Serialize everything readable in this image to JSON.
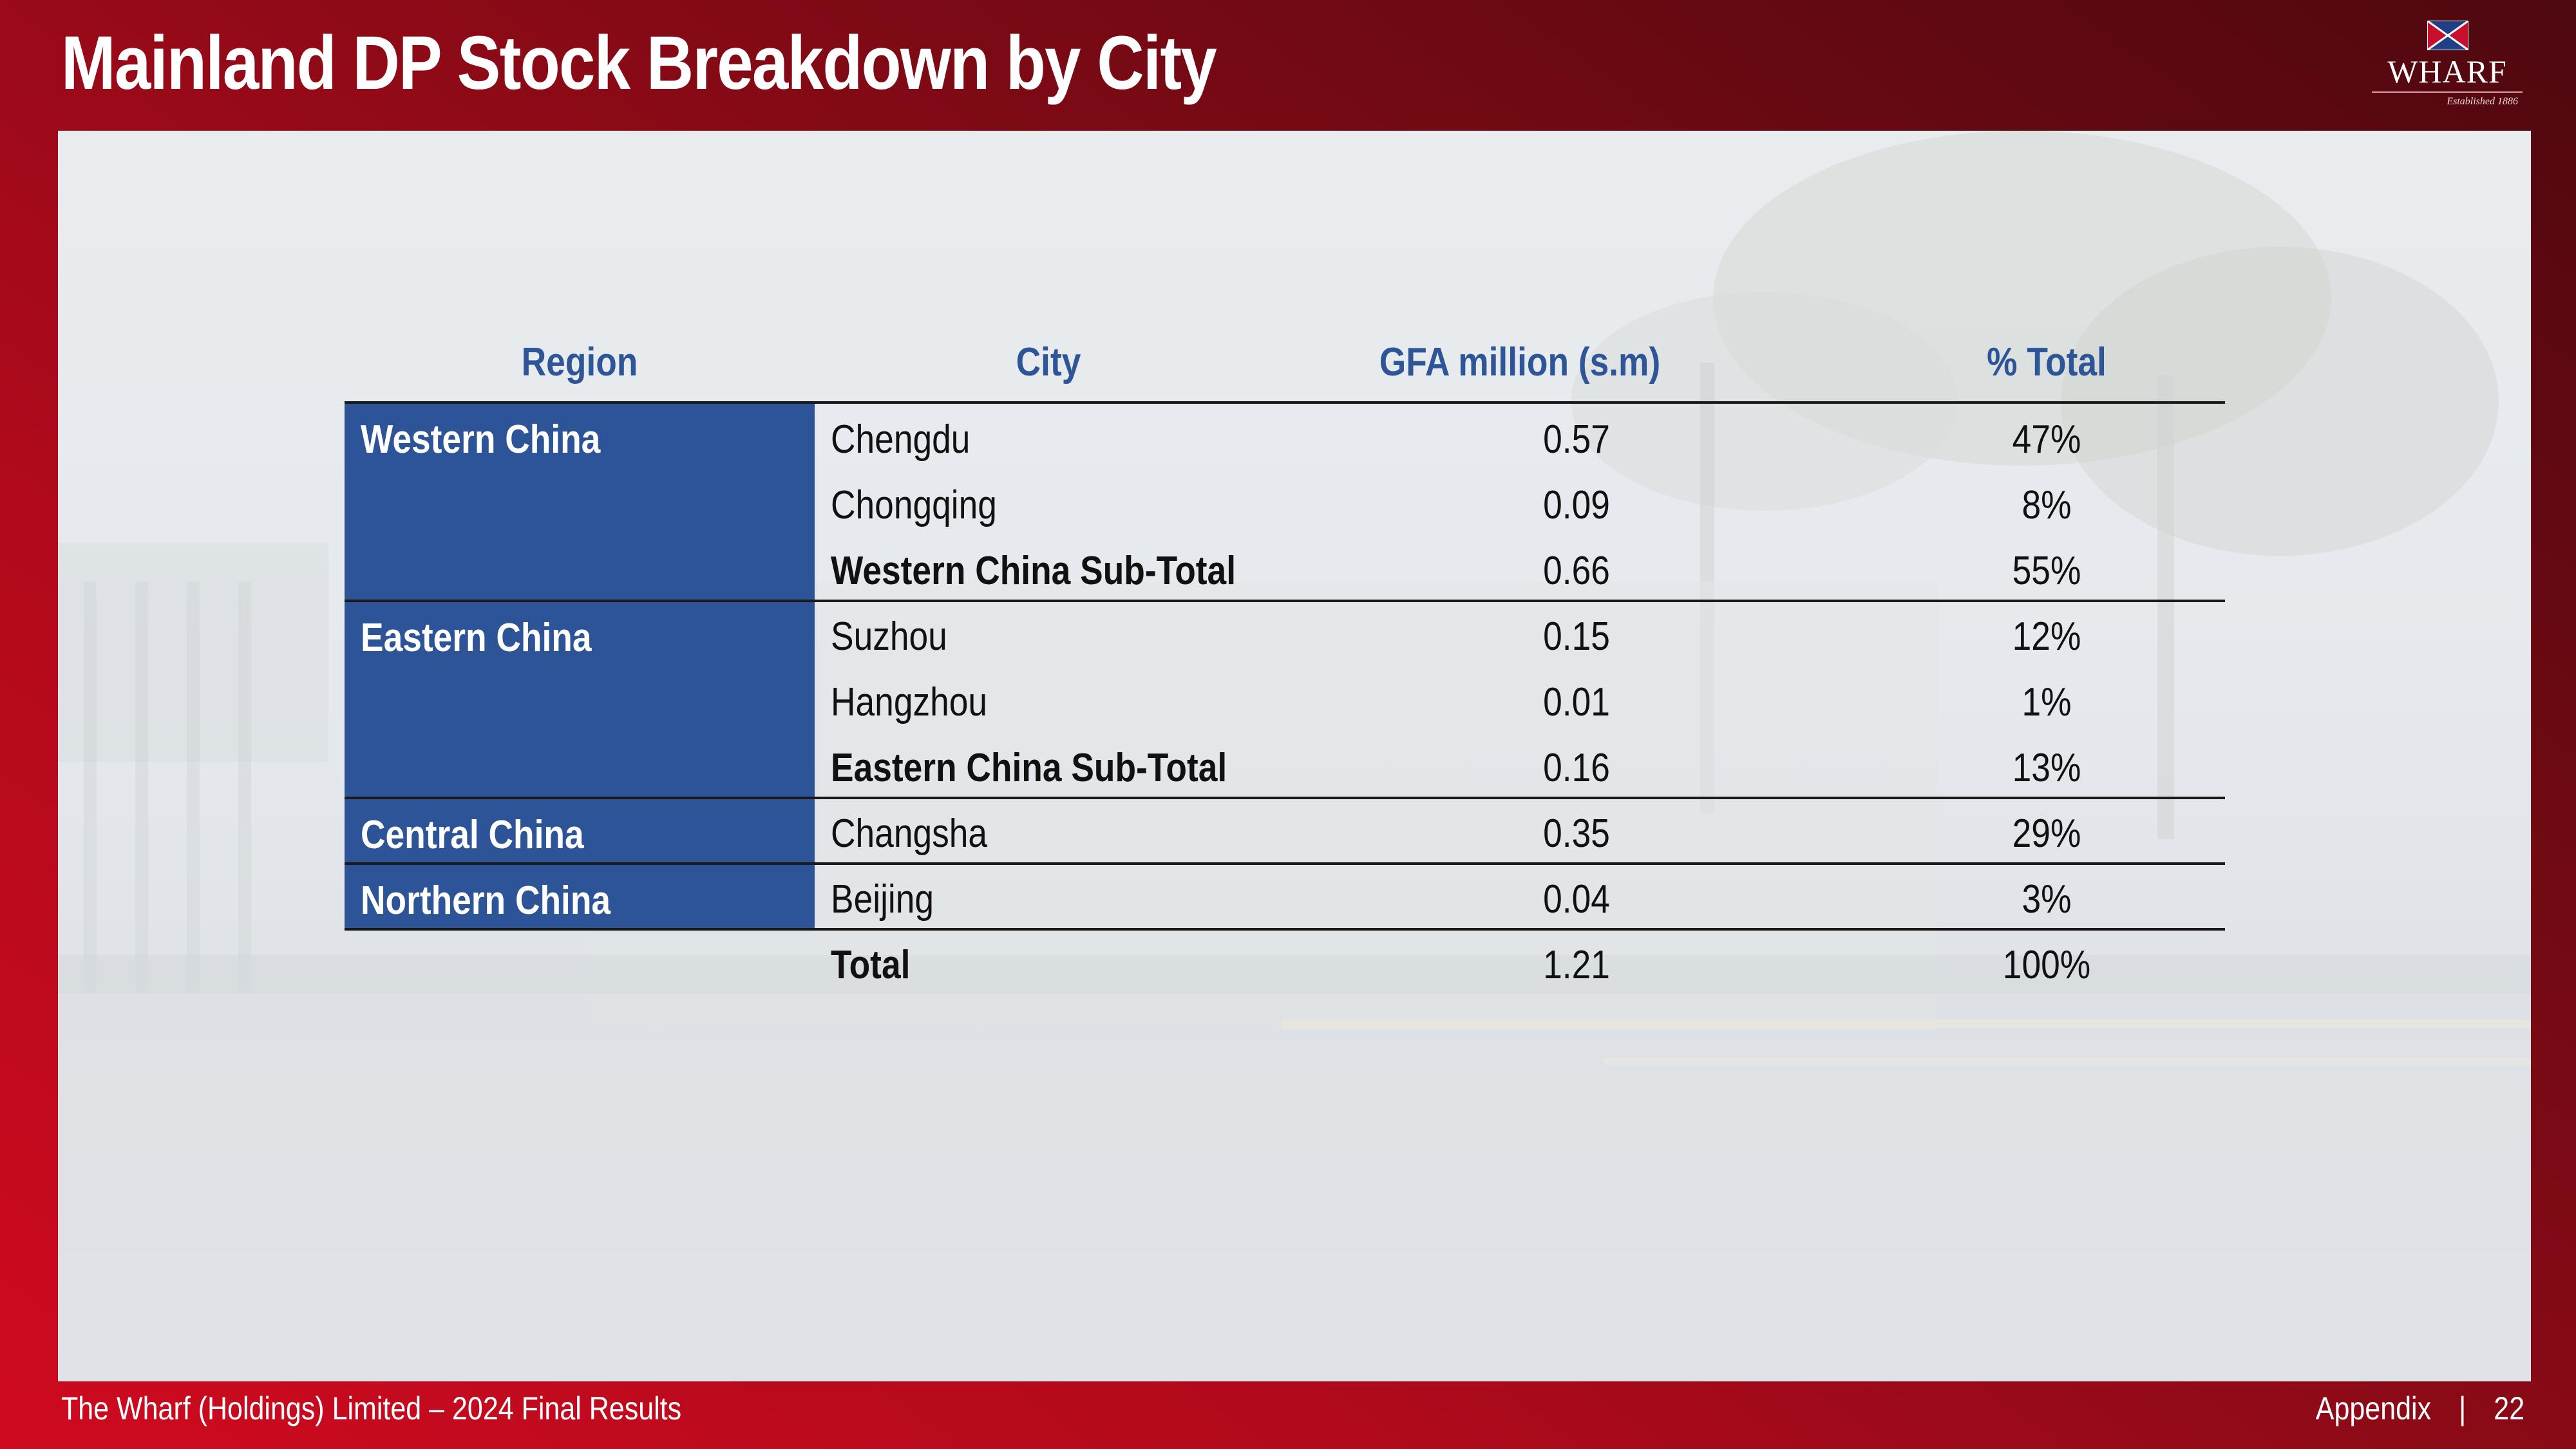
{
  "slide": {
    "title": "Mainland DP Stock Breakdown by City"
  },
  "logo": {
    "name": "WHARF",
    "tagline": "Established 1886"
  },
  "table": {
    "headers": {
      "region": "Region",
      "city": "City",
      "gfa": "GFA million (s.m)",
      "pct": "% Total"
    },
    "regions": [
      {
        "label": "Western China"
      },
      {
        "label": "Eastern China"
      },
      {
        "label": "Central China"
      },
      {
        "label": "Northern China"
      }
    ],
    "rows": [
      {
        "city": "Chengdu",
        "gfa": "0.57",
        "pct": "47%"
      },
      {
        "city": "Chongqing",
        "gfa": "0.09",
        "pct": "8%"
      },
      {
        "city": "Western China Sub-Total",
        "gfa": "0.66",
        "pct": "55%"
      },
      {
        "city": "Suzhou",
        "gfa": "0.15",
        "pct": "12%"
      },
      {
        "city": "Hangzhou",
        "gfa": "0.01",
        "pct": "1%"
      },
      {
        "city": "Eastern China Sub-Total",
        "gfa": "0.16",
        "pct": "13%"
      },
      {
        "city": "Changsha",
        "gfa": "0.35",
        "pct": "29%"
      },
      {
        "city": "Beijing",
        "gfa": "0.04",
        "pct": "3%"
      },
      {
        "city": "Total",
        "gfa": "1.21",
        "pct": "100%"
      }
    ]
  },
  "footer": {
    "left": "The Wharf (Holdings) Limited – 2024 Final Results",
    "section": "Appendix",
    "separator": "|",
    "page": "22"
  },
  "colors": {
    "brand_red": "#c8102e",
    "region_blue": "#2d5496",
    "header_blue": "#2e5597"
  }
}
